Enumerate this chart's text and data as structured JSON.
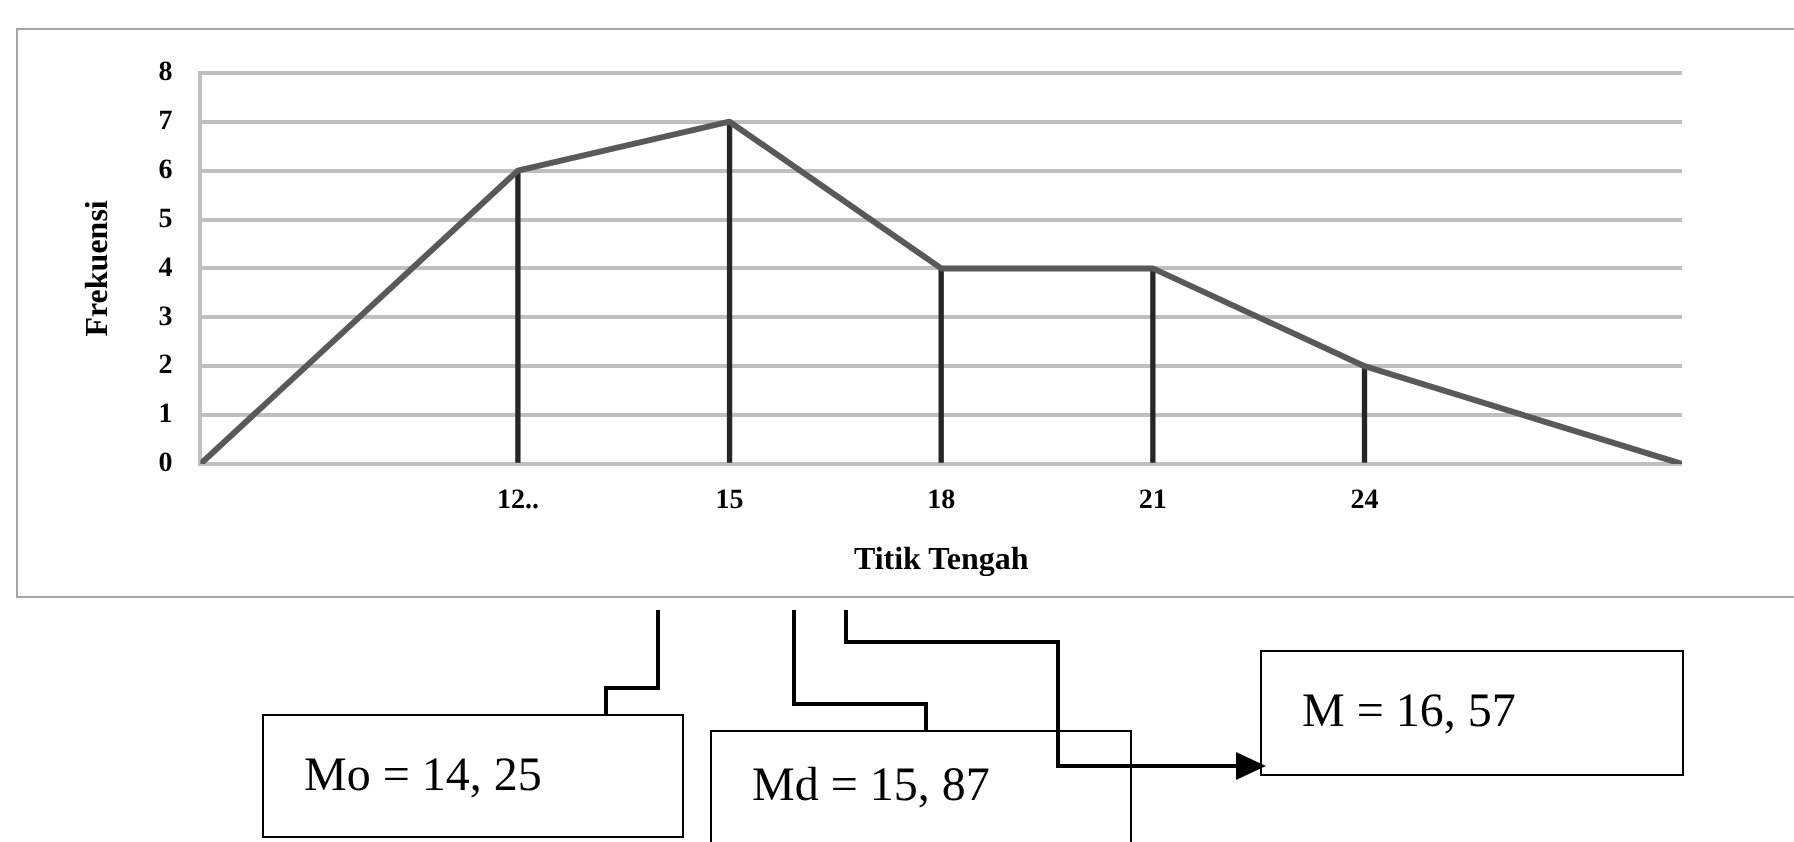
{
  "chart_data": {
    "type": "line",
    "xlabel": "Titik Tengah",
    "ylabel": "Frekuensi",
    "xlim": [
      7.5,
      28.5
    ],
    "xticks": [
      {
        "value": 12,
        "label": "12.."
      },
      15,
      18,
      21,
      24
    ],
    "ylim": [
      0,
      8
    ],
    "yticks": [
      0,
      1,
      2,
      3,
      4,
      5,
      6,
      7,
      8
    ],
    "grid": "y",
    "legend": false,
    "marker": "none",
    "line_style": "solid",
    "series": [
      {
        "color": "#595959",
        "x": [
          7.5,
          12,
          15,
          18,
          21,
          24,
          28.5
        ],
        "values": [
          0,
          6,
          7,
          4,
          4,
          2,
          0
        ]
      },
      {
        "type": "bar",
        "color": "#262626",
        "x": [
          12,
          15,
          18,
          21,
          24
        ],
        "values": [
          6,
          7,
          4,
          4,
          2
        ]
      }
    ],
    "annotations": [
      "Mo = 14, 25",
      "Md = 15, 87",
      "M = 16, 57"
    ]
  }
}
